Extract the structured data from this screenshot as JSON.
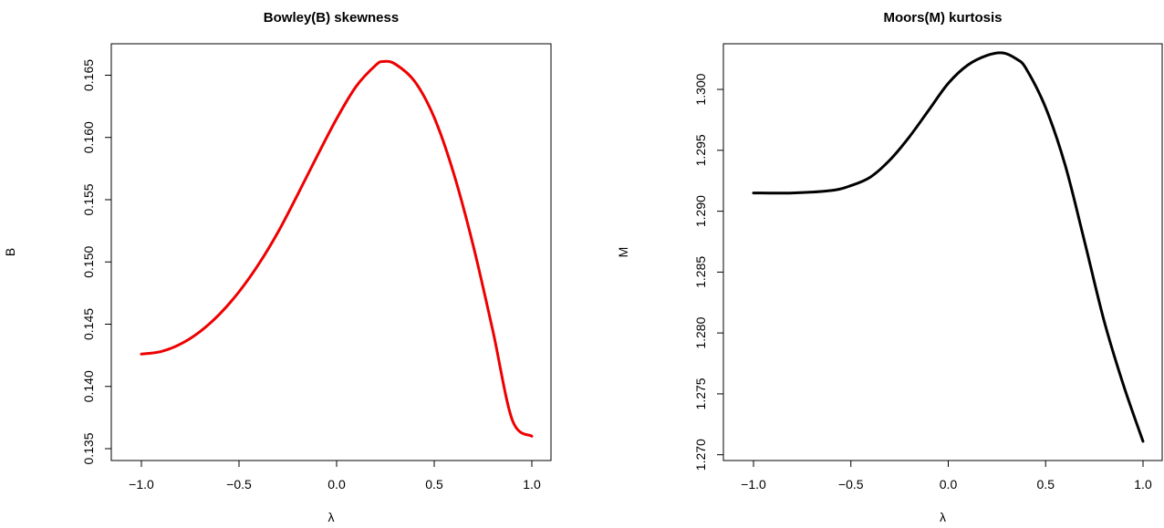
{
  "chart_data": [
    {
      "type": "line",
      "title": "Bowley(B) skewness",
      "xlabel": "λ",
      "ylabel": "B",
      "xlim": [
        -1.0,
        1.0
      ],
      "ylim": [
        0.135,
        0.1665
      ],
      "x_ticks": [
        "−1.0",
        "−0.5",
        "0.0",
        "0.5",
        "1.0"
      ],
      "x_tick_values": [
        -1.0,
        -0.5,
        0.0,
        0.5,
        1.0
      ],
      "y_ticks": [
        "0.135",
        "0.140",
        "0.145",
        "0.150",
        "0.155",
        "0.160",
        "0.165"
      ],
      "y_tick_values": [
        0.135,
        0.14,
        0.145,
        0.15,
        0.155,
        0.16,
        0.165
      ],
      "grid": false,
      "color": "#ee0000",
      "series": [
        {
          "x": [
            -1.0,
            -0.9,
            -0.8,
            -0.7,
            -0.6,
            -0.5,
            -0.4,
            -0.3,
            -0.2,
            -0.1,
            0.0,
            0.1,
            0.2,
            0.24,
            0.3,
            0.4,
            0.5,
            0.6,
            0.7,
            0.8,
            0.9,
            1.0
          ],
          "values": [
            0.1426,
            0.1428,
            0.1434,
            0.1444,
            0.1458,
            0.1476,
            0.1498,
            0.1524,
            0.1554,
            0.1585,
            0.1615,
            0.1641,
            0.1658,
            0.1661,
            0.1659,
            0.1645,
            0.1616,
            0.1571,
            0.1513,
            0.1445,
            0.1373,
            0.136
          ]
        }
      ]
    },
    {
      "type": "line",
      "title": "Moors(M) kurtosis",
      "xlabel": "λ",
      "ylabel": "M",
      "xlim": [
        -1.0,
        1.0
      ],
      "ylim": [
        1.2705,
        1.3027
      ],
      "x_ticks": [
        "−1.0",
        "−0.5",
        "0.0",
        "0.5",
        "1.0"
      ],
      "x_tick_values": [
        -1.0,
        -0.5,
        0.0,
        0.5,
        1.0
      ],
      "y_ticks": [
        "1.270",
        "1.275",
        "1.280",
        "1.285",
        "1.290",
        "1.295",
        "1.300"
      ],
      "y_tick_values": [
        1.27,
        1.275,
        1.28,
        1.285,
        1.29,
        1.295,
        1.3
      ],
      "grid": false,
      "color": "#000000",
      "series": [
        {
          "x": [
            -1.0,
            -0.8,
            -0.6,
            -0.5,
            -0.4,
            -0.3,
            -0.2,
            -0.1,
            0.0,
            0.1,
            0.2,
            0.28,
            0.35,
            0.4,
            0.5,
            0.6,
            0.7,
            0.8,
            0.9,
            1.0
          ],
          "values": [
            1.2915,
            1.2915,
            1.2917,
            1.2921,
            1.2928,
            1.2942,
            1.2961,
            1.2983,
            1.3005,
            1.302,
            1.3028,
            1.303,
            1.3025,
            1.3017,
            1.2985,
            1.2938,
            1.2875,
            1.281,
            1.2757,
            1.2711
          ]
        }
      ]
    }
  ]
}
